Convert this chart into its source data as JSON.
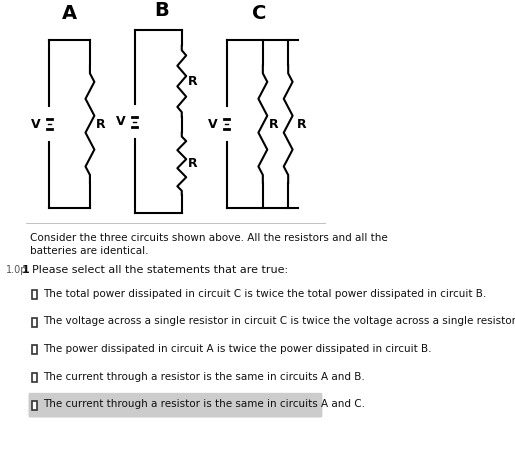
{
  "title": "",
  "bg_color": "#ffffff",
  "circuit_A_label": "A",
  "circuit_B_label": "B",
  "circuit_C_label": "C",
  "battery_label": "V",
  "resistor_label": "R",
  "intro_text_line1": "Consider the three circuits shown above. All the resistors and all the",
  "intro_text_line2": "batteries are identical.",
  "points_label": "1.0p",
  "question_number": "1",
  "question_text": "Please select all the statements that are true:",
  "options": [
    "The total power dissipated in circuit C is twice the total power dissipated in circuit B.",
    "The voltage across a single resistor in circuit C is twice the voltage across a single resistor in circuit B.",
    "The power dissipated in circuit A is twice the power dissipated in circuit B.",
    "The current through a resistor is the same in circuits A and B.",
    "The current through a resistor is the same in circuits A and C."
  ],
  "last_option_highlighted": true,
  "checkbox_size": 9,
  "checkbox_color": "#333333",
  "highlight_color": "#cccccc",
  "text_color": "#111111",
  "label_color": "#000000"
}
